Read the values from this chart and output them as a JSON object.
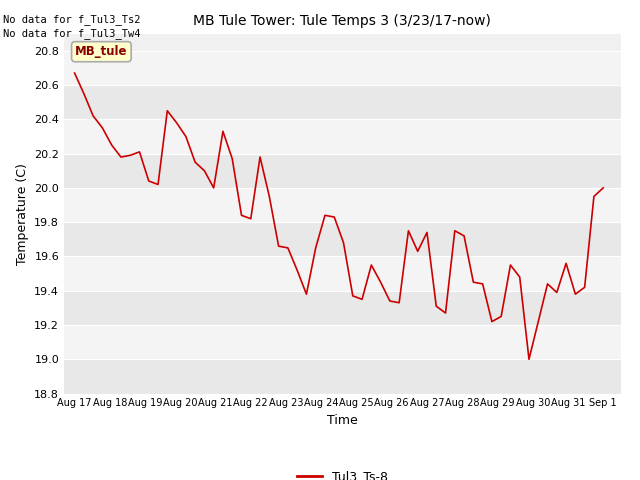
{
  "title": "MB Tule Tower: Tule Temps 3 (3/23/17-now)",
  "xlabel": "Time",
  "ylabel": "Temperature (C)",
  "line_color": "#cc0000",
  "line_label": "Tul3_Ts-8",
  "ylim": [
    18.8,
    20.9
  ],
  "yticks": [
    18.8,
    19.0,
    19.2,
    19.4,
    19.6,
    19.8,
    20.0,
    20.2,
    20.4,
    20.6,
    20.8
  ],
  "no_data_text1": "No data for f_Tul3_Ts2",
  "no_data_text2": "No data for f_Tul3_Tw4",
  "legend_box_label": "MB_tule",
  "legend_box_facecolor": "#ffffcc",
  "legend_box_edgecolor": "#aaaaaa",
  "x_tick_labels": [
    "Aug 17",
    "Aug 18",
    "Aug 19",
    "Aug 20",
    "Aug 21",
    "Aug 22",
    "Aug 23",
    "Aug 24",
    "Aug 25",
    "Aug 26",
    "Aug 27",
    "Aug 28",
    "Aug 29",
    "Aug 30",
    "Aug 31",
    "Sep 1"
  ],
  "y_values": [
    20.67,
    20.55,
    20.42,
    20.35,
    20.25,
    20.18,
    20.19,
    20.21,
    20.04,
    20.02,
    20.45,
    20.38,
    20.3,
    20.15,
    20.1,
    20.0,
    20.33,
    20.17,
    19.84,
    19.82,
    20.18,
    19.95,
    19.66,
    19.65,
    19.52,
    19.38,
    19.65,
    19.84,
    19.83,
    19.68,
    19.37,
    19.35,
    19.55,
    19.45,
    19.34,
    19.33,
    19.75,
    19.63,
    19.74,
    19.31,
    19.27,
    19.75,
    19.72,
    19.45,
    19.44,
    19.22,
    19.25,
    19.55,
    19.48,
    19.0,
    19.22,
    19.44,
    19.39,
    19.56,
    19.38,
    19.42,
    19.95,
    20.0
  ]
}
